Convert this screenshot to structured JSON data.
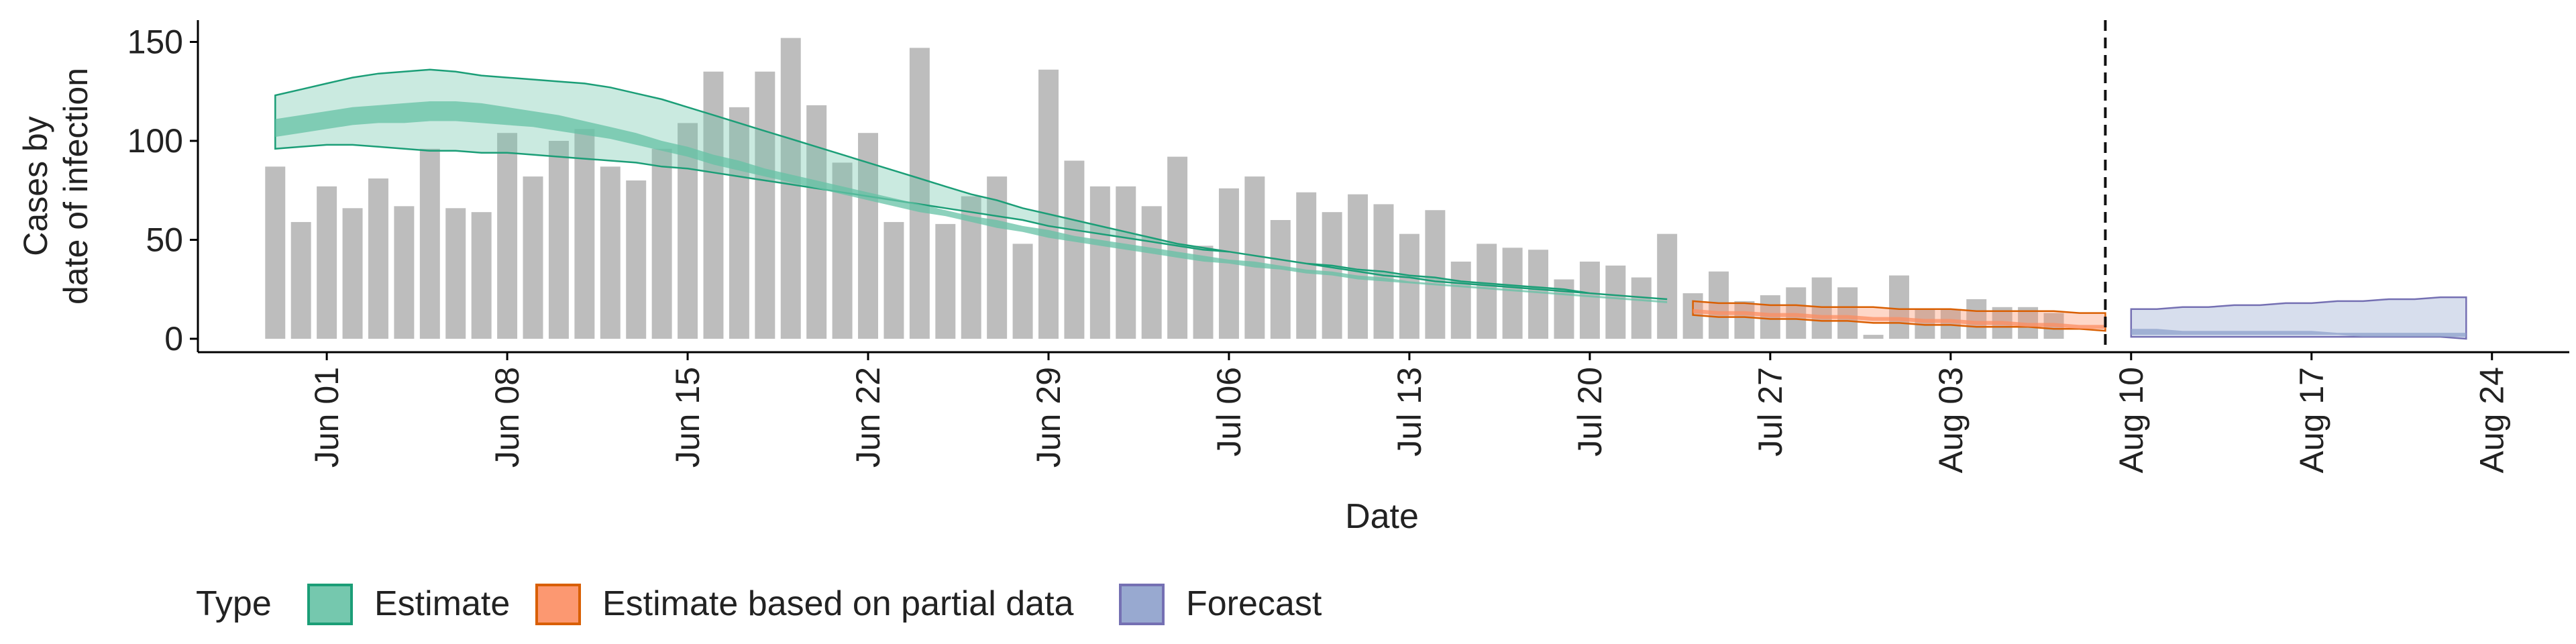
{
  "chart_data": {
    "type": "bar",
    "ylabel": [
      "Cases by",
      "date of infection"
    ],
    "xlabel": "Date",
    "ylim": [
      0,
      160
    ],
    "yticks": [
      0,
      50,
      100,
      150
    ],
    "xlim": [
      "2020-05-27",
      "2020-08-27"
    ],
    "xticks": [
      {
        "date": "2020-06-01",
        "label": "Jun 01"
      },
      {
        "date": "2020-06-08",
        "label": "Jun 08"
      },
      {
        "date": "2020-06-15",
        "label": "Jun 15"
      },
      {
        "date": "2020-06-22",
        "label": "Jun 22"
      },
      {
        "date": "2020-06-29",
        "label": "Jun 29"
      },
      {
        "date": "2020-07-06",
        "label": "Jul 06"
      },
      {
        "date": "2020-07-13",
        "label": "Jul 13"
      },
      {
        "date": "2020-07-20",
        "label": "Jul 20"
      },
      {
        "date": "2020-07-27",
        "label": "Jul 27"
      },
      {
        "date": "2020-08-03",
        "label": "Aug 03"
      },
      {
        "date": "2020-08-10",
        "label": "Aug 10"
      },
      {
        "date": "2020-08-17",
        "label": "Aug 17"
      },
      {
        "date": "2020-08-24",
        "label": "Aug 24"
      }
    ],
    "bars": {
      "start_date": "2020-05-30",
      "color": "#bdbdbd",
      "values": [
        87,
        59,
        77,
        66,
        81,
        67,
        96,
        66,
        64,
        104,
        82,
        100,
        106,
        87,
        80,
        96,
        109,
        135,
        117,
        135,
        152,
        118,
        89,
        104,
        59,
        147,
        58,
        72,
        82,
        48,
        136,
        90,
        77,
        77,
        67,
        92,
        47,
        76,
        82,
        60,
        74,
        64,
        73,
        68,
        53,
        65,
        39,
        48,
        46,
        45,
        30,
        39,
        37,
        31,
        53,
        23,
        34,
        19,
        22,
        26,
        31,
        26,
        2,
        32,
        15,
        15,
        20,
        16,
        16,
        13
      ]
    },
    "forecast_date": "2020-08-09",
    "legend": {
      "title": "Type",
      "position": "bottom",
      "entries": [
        {
          "label": "Estimate",
          "fill": "#66c2a5",
          "stroke": "#1b9e77"
        },
        {
          "label": "Estimate based on partial data",
          "fill": "#fc8d62",
          "stroke": "#d95f02"
        },
        {
          "label": "Forecast",
          "fill": "#8da0cb",
          "stroke": "#7570b3"
        }
      ]
    },
    "series": [
      {
        "name": "Estimate",
        "start_date": "2020-05-30",
        "fill": "#66c2a5",
        "stroke": "#1b9e77",
        "lower90": [
          96,
          97,
          98,
          98,
          97,
          96,
          95,
          95,
          94,
          94,
          93,
          92,
          91,
          90,
          89,
          87,
          86,
          84,
          82,
          80,
          78,
          76,
          74,
          72,
          70,
          68,
          66,
          64,
          62,
          60,
          57,
          55,
          53,
          51,
          49,
          47,
          45,
          44,
          42,
          40,
          38,
          37,
          35,
          34,
          32,
          31,
          29,
          28,
          27,
          26,
          25,
          23,
          22,
          21,
          20
        ],
        "upper90": [
          123,
          126,
          129,
          132,
          134,
          135,
          136,
          135,
          133,
          132,
          131,
          130,
          129,
          127,
          124,
          121,
          117,
          113,
          109,
          105,
          101,
          97,
          93,
          89,
          85,
          81,
          77,
          73,
          70,
          66,
          63,
          60,
          57,
          54,
          51,
          48,
          46,
          44,
          42,
          40,
          38,
          36,
          34,
          32,
          31,
          29,
          28,
          27,
          26,
          25,
          24,
          23,
          22,
          21,
          20
        ],
        "lower50": [
          102,
          104,
          106,
          108,
          109,
          109,
          110,
          110,
          109,
          108,
          107,
          105,
          103,
          101,
          98,
          95,
          92,
          88,
          85,
          82,
          79,
          76,
          73,
          70,
          67,
          64,
          62,
          59,
          56,
          54,
          51,
          49,
          47,
          45,
          43,
          41,
          39,
          38,
          36,
          35,
          33,
          32,
          30,
          29,
          28,
          27,
          26,
          25,
          24,
          23,
          22,
          21,
          20,
          19,
          18
        ],
        "upper50": [
          111,
          113,
          115,
          117,
          118,
          119,
          120,
          120,
          119,
          117,
          115,
          113,
          110,
          107,
          104,
          100,
          97,
          93,
          90,
          86,
          83,
          80,
          77,
          74,
          71,
          68,
          65,
          62,
          60,
          57,
          55,
          52,
          50,
          48,
          46,
          44,
          42,
          40,
          39,
          37,
          35,
          34,
          32,
          31,
          29,
          28,
          27,
          26,
          25,
          24,
          23,
          22,
          21,
          20,
          19
        ]
      },
      {
        "name": "Estimate based on partial data",
        "start_date": "2020-07-24",
        "fill": "#fc8d62",
        "stroke": "#d95f02",
        "lower90": [
          12,
          11,
          11,
          10,
          10,
          9,
          9,
          8,
          8,
          7,
          7,
          6,
          6,
          6,
          5,
          5,
          4
        ],
        "upper90": [
          19,
          18,
          18,
          17,
          17,
          16,
          16,
          16,
          15,
          15,
          15,
          14,
          14,
          14,
          14,
          13,
          13
        ],
        "lower50": [
          13,
          12,
          12,
          11,
          11,
          10,
          10,
          9,
          9,
          8,
          8,
          7,
          7,
          6,
          6,
          5,
          5
        ],
        "upper50": [
          15,
          14,
          14,
          13,
          13,
          12,
          12,
          11,
          11,
          10,
          10,
          9,
          9,
          8,
          8,
          7,
          7
        ]
      },
      {
        "name": "Forecast",
        "start_date": "2020-08-10",
        "fill": "#8da0cb",
        "stroke": "#7570b3",
        "lower90": [
          1,
          1,
          1,
          1,
          1,
          1,
          1,
          1,
          1,
          1,
          1,
          1,
          1,
          0
        ],
        "upper90": [
          15,
          15,
          16,
          16,
          17,
          17,
          18,
          18,
          19,
          19,
          20,
          20,
          21,
          21
        ],
        "lower50": [
          2,
          2,
          2,
          2,
          2,
          2,
          2,
          2,
          2,
          1,
          1,
          1,
          1,
          1
        ],
        "upper50": [
          5,
          5,
          4,
          4,
          4,
          4,
          4,
          4,
          3,
          3,
          3,
          3,
          3,
          3
        ]
      }
    ]
  }
}
